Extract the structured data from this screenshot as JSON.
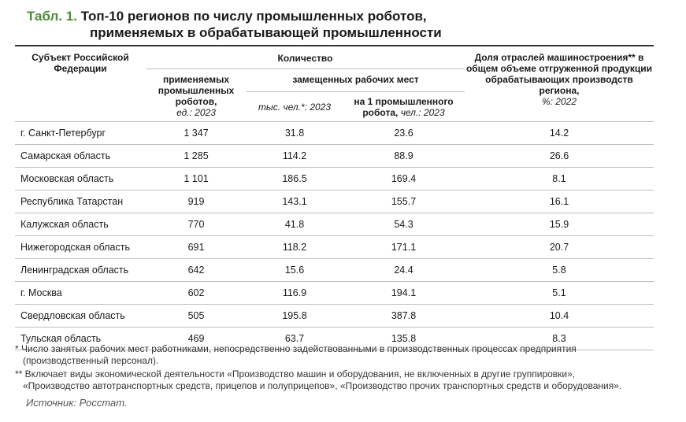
{
  "title": {
    "number": "Табл. 1.",
    "line1": "Топ-10 регионов по числу промышленных роботов,",
    "line2": "применяемых в обрабатывающей промышленности"
  },
  "header": {
    "subject": "Субъект Российской Федерации",
    "quantity": "Количество",
    "robots_used": "применяемых промышленных роботов,",
    "robots_unit": "ед.: 2023",
    "jobs_replaced": "замещенных рабочих мест",
    "jobs_thousands_unit": "тыс. чел.*: 2023",
    "per_robot_label": "на 1 промышленного робота,",
    "per_robot_unit": "чел.: 2023",
    "share_label": "Доля отраслей машиностроения** в общем объеме отгруженной продукции обрабатывающих производств региона,",
    "share_unit": "%: 2022"
  },
  "rows": [
    {
      "region": "г. Санкт-Петербург",
      "robots": "1 347",
      "jobs": "31.8",
      "per_robot": "23.6",
      "share": "14.2"
    },
    {
      "region": "Самарская область",
      "robots": "1 285",
      "jobs": "114.2",
      "per_robot": "88.9",
      "share": "26.6"
    },
    {
      "region": "Московская область",
      "robots": "1 101",
      "jobs": "186.5",
      "per_robot": "169.4",
      "share": "8.1"
    },
    {
      "region": "Республика Татарстан",
      "robots": "919",
      "jobs": "143.1",
      "per_robot": "155.7",
      "share": "16.1"
    },
    {
      "region": "Калужская область",
      "robots": "770",
      "jobs": "41.8",
      "per_robot": "54.3",
      "share": "15.9"
    },
    {
      "region": "Нижегородская область",
      "robots": "691",
      "jobs": "118.2",
      "per_robot": "171.1",
      "share": "20.7"
    },
    {
      "region": "Ленинградская область",
      "robots": "642",
      "jobs": "15.6",
      "per_robot": "24.4",
      "share": "5.8"
    },
    {
      "region": "г. Москва",
      "robots": "602",
      "jobs": "116.9",
      "per_robot": "194.1",
      "share": "5.1"
    },
    {
      "region": "Свердловская область",
      "robots": "505",
      "jobs": "195.8",
      "per_robot": "387.8",
      "share": "10.4"
    },
    {
      "region": "Тульская область",
      "robots": "469",
      "jobs": "63.7",
      "per_robot": "135.8",
      "share": "8.3"
    }
  ],
  "notes": {
    "note1_a": "* Число занятых рабочих мест работниками, непосредственно задействованными в производственных процессах предприятия",
    "note1_b": "(производственный персонал).",
    "note2_a": "** Включает виды экономической деятельности «Производство машин и оборудования, не включенных в другие группировки»,",
    "note2_b": "«Производство автотранспортных средств, прицепов и полуприцепов», «Производство прочих транспортных средств и оборудования»."
  },
  "source": "Источник: Росстат."
}
